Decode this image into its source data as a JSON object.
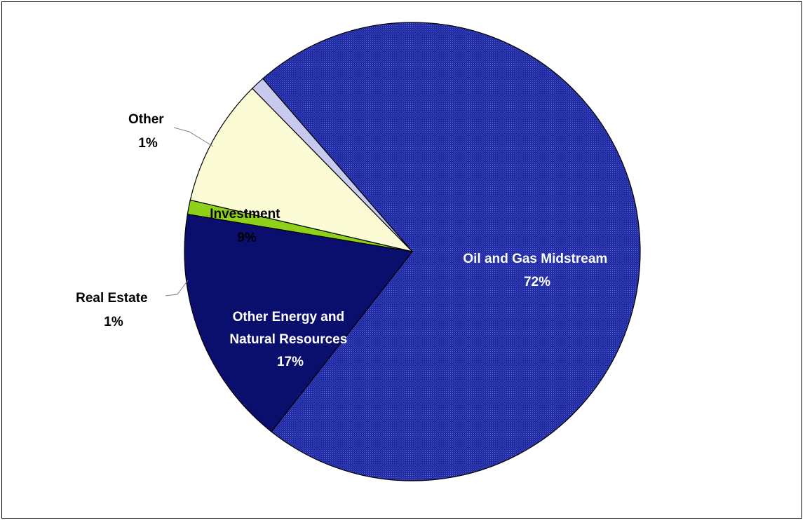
{
  "chart_data": {
    "type": "pie",
    "title": "",
    "slices": [
      {
        "label": "Oil and Gas Midstream",
        "value": 72,
        "pct_label": "72%",
        "color": "#1f2aa0",
        "label_color": "#ffffff",
        "pattern": "dotted"
      },
      {
        "label": "Other Energy and Natural Resources",
        "value": 17,
        "pct_label": "17%",
        "color": "#0a0f6e",
        "label_color": "#ffffff",
        "pattern": "solid"
      },
      {
        "label": "Real Estate",
        "value": 1,
        "pct_label": "1%",
        "color": "#8fd11a",
        "label_color": "#000000",
        "pattern": "solid"
      },
      {
        "label": "Investment",
        "value": 9,
        "pct_label": "9%",
        "color": "#fbfbd6",
        "label_color": "#000000",
        "pattern": "solid"
      },
      {
        "label": "Other",
        "value": 1,
        "pct_label": "1%",
        "color": "#c7c9ef",
        "label_color": "#000000",
        "pattern": "solid"
      }
    ],
    "legend": "none",
    "data_labels": "category and percent"
  }
}
